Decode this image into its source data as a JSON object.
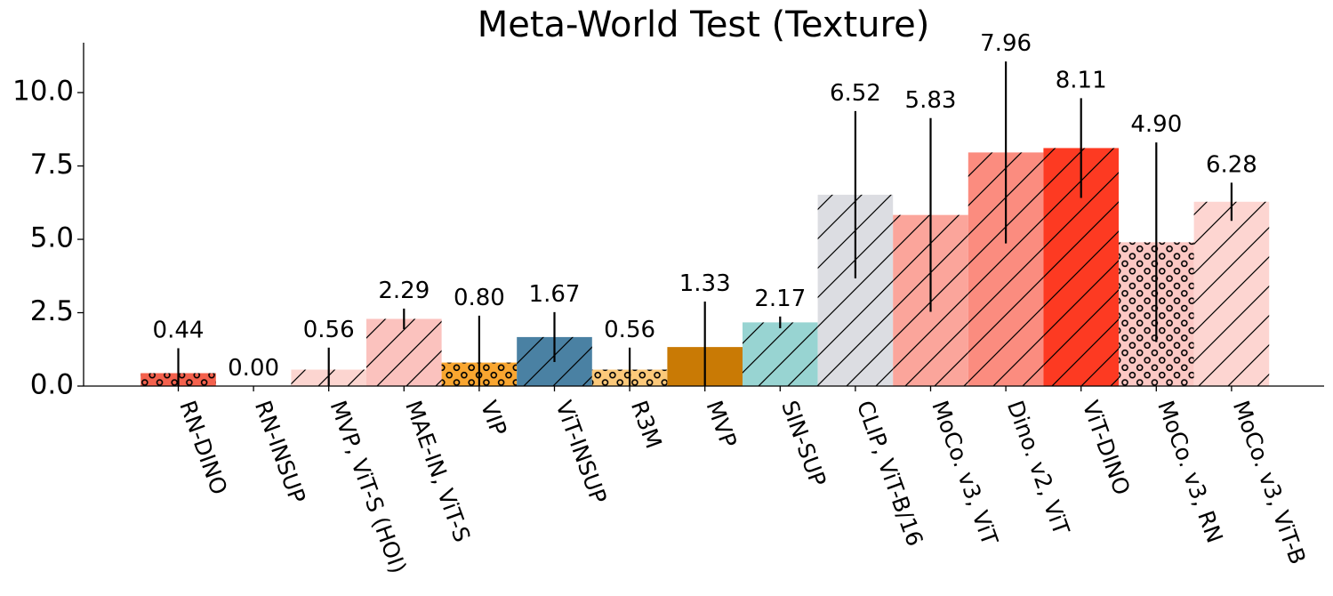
{
  "chart_data": {
    "type": "bar",
    "title": "Meta-World Test (Texture)",
    "xlabel": "",
    "ylabel": "",
    "ylim": [
      0,
      11.7
    ],
    "yticks": [
      "0.0",
      "2.5",
      "5.0",
      "7.5",
      "10.0"
    ],
    "categories": [
      "RN-DINO",
      "RN-INSUP",
      "MVP, ViT-S (HOI)",
      "MAE-IN, ViT-S",
      "VIP",
      "ViT-INSUP",
      "R3M",
      "MVP",
      "SIN-SUP",
      "CLIP, ViT-B/16",
      "MoCo. v3, ViT",
      "Dino. v2, ViT",
      "ViT-DINO",
      "MoCo. v3, RN",
      "MoCo. v3, ViT-B"
    ],
    "values": [
      0.44,
      0.0,
      0.56,
      2.29,
      0.8,
      1.67,
      0.56,
      1.33,
      2.17,
      6.52,
      5.83,
      7.96,
      8.11,
      4.9,
      6.28
    ],
    "value_labels": [
      "0.44",
      "0.00",
      "0.56",
      "2.29",
      "0.80",
      "1.67",
      "0.56",
      "1.33",
      "2.17",
      "6.52",
      "5.83",
      "7.96",
      "8.11",
      "4.90",
      "6.28"
    ],
    "error": [
      0.85,
      0.0,
      0.75,
      0.35,
      1.6,
      0.85,
      0.75,
      1.55,
      0.2,
      2.85,
      3.3,
      3.1,
      1.7,
      3.4,
      0.65
    ],
    "colors": [
      "#f4614d",
      "#fbd2cc",
      "#fcd5d0",
      "#fbc2be",
      "#f9a630",
      "#4a81a3",
      "#fcc97a",
      "#c97a05",
      "#98d4d2",
      "#dcdde2",
      "#fba59b",
      "#fb8c7f",
      "#fd3a22",
      "#fcc8c4",
      "#fdd5d1"
    ],
    "hatches": [
      "dots",
      "none",
      "diag",
      "diag",
      "dots",
      "diag",
      "dots",
      "none",
      "diag",
      "diag",
      "diag",
      "diag",
      "diag",
      "dots",
      "diag"
    ],
    "grid": false,
    "legend": "none"
  }
}
